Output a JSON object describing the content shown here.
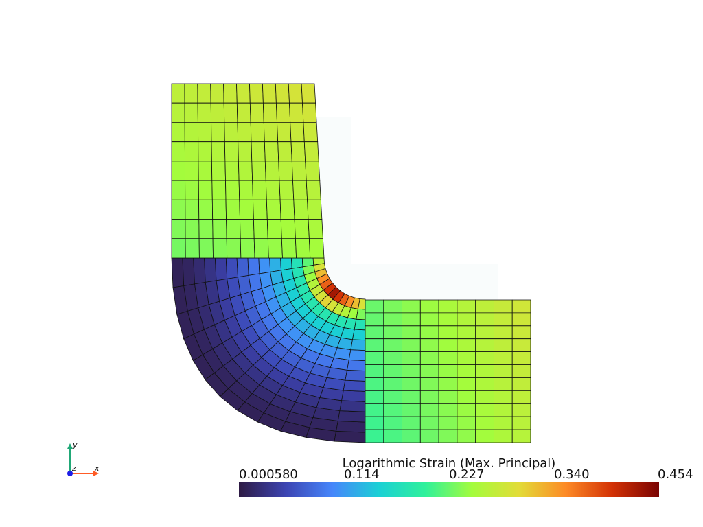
{
  "colorbar": {
    "title": "Logarithmic Strain (Max. Principal)",
    "ticks": [
      "0.000580",
      "0.114",
      "0.227",
      "0.340",
      "0.454"
    ],
    "range": [
      0.00058,
      0.454
    ],
    "colormap": [
      "#2e1b44",
      "#3c44b2",
      "#4686fb",
      "#1bd0d5",
      "#2ff19a",
      "#a4fc3c",
      "#e2dc38",
      "#fd8a26",
      "#d23105",
      "#7a0403"
    ]
  },
  "axes": {
    "x": "x",
    "y": "y",
    "z": "z"
  },
  "colors": {
    "mesh_line": "#111111",
    "ghost_fill": "#f9fcfc",
    "x_axis": "#ff5c26",
    "y_axis": "#21a877",
    "z_axis": "#1e1ee6"
  }
}
